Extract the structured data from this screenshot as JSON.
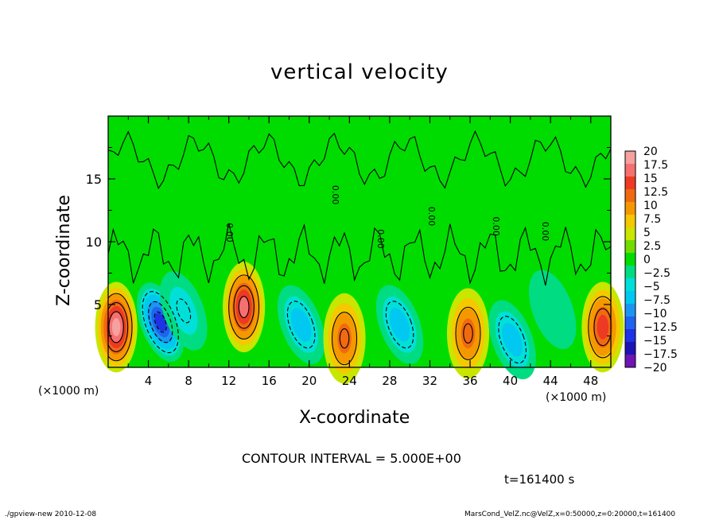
{
  "title": "vertical velocity",
  "chart_data": {
    "type": "heatmap",
    "title": "vertical velocity",
    "xlabel": "X-coordinate",
    "ylabel": "Z-coordinate",
    "x_unit": "(×1000 m)",
    "y_unit": "(×1000 m)",
    "xlim": [
      0,
      50
    ],
    "ylim": [
      0,
      20
    ],
    "x_ticks": [
      4,
      8,
      12,
      16,
      20,
      24,
      28,
      32,
      36,
      40,
      44,
      48
    ],
    "y_ticks": [
      5,
      10,
      15
    ],
    "contour_interval": "CONTOUR INTERVAL = 5.000E+00",
    "contour_labels": [
      "0.00",
      "0.00",
      "0.00",
      "0.00",
      "0.00",
      "0.00"
    ],
    "colorbar": {
      "levels": [
        "20",
        "17.5",
        "15",
        "12.5",
        "10",
        "7.5",
        "5",
        "2.5",
        "0",
        "-2.5",
        "-5",
        "-7.5",
        "-10",
        "-12.5",
        "-15",
        "-17.5",
        "-20"
      ],
      "colors": [
        "#f6a0a0",
        "#f67070",
        "#ee3a22",
        "#f06a10",
        "#f59800",
        "#f5c800",
        "#c8e600",
        "#72dc00",
        "#00dc00",
        "#00dc82",
        "#00e0d8",
        "#00c8f0",
        "#1a96f0",
        "#1e64f0",
        "#1e32e6",
        "#1e14b4",
        "#6e14b4"
      ]
    },
    "features": [
      {
        "x": 0.8,
        "z": 3.2,
        "w": 20
      },
      {
        "x": 5.2,
        "z": 3.6,
        "w": -17
      },
      {
        "x": 7.5,
        "z": 4.5,
        "w": -6
      },
      {
        "x": 13.5,
        "z": 4.8,
        "w": 17
      },
      {
        "x": 19.2,
        "z": 3.4,
        "w": -10
      },
      {
        "x": 23.5,
        "z": 2.3,
        "w": 11
      },
      {
        "x": 29.0,
        "z": 3.4,
        "w": -10
      },
      {
        "x": 35.8,
        "z": 2.7,
        "w": 11
      },
      {
        "x": 40.2,
        "z": 2.2,
        "w": -10
      },
      {
        "x": 44.2,
        "z": 4.6,
        "w": -5
      },
      {
        "x": 49.2,
        "z": 3.2,
        "w": 15
      }
    ]
  },
  "footer_time": "t=161400 s",
  "footer_left": "./gpview-new   2010-12-08",
  "footer_right": "MarsCond_VelZ.nc@VelZ,x=0:50000,z=0:20000,t=161400"
}
